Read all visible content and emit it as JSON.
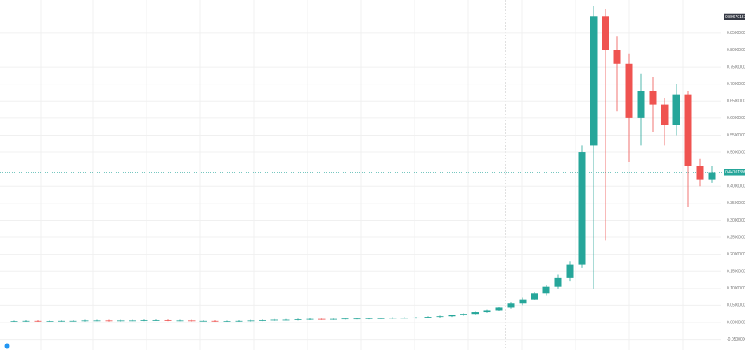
{
  "chart_data": {
    "type": "candlestick",
    "series": {
      "open": [
        0.004,
        0.004,
        0.005,
        0.004,
        0.004,
        0.005,
        0.005,
        0.006,
        0.006,
        0.005,
        0.006,
        0.006,
        0.007,
        0.007,
        0.006,
        0.006,
        0.005,
        0.005,
        0.004,
        0.004,
        0.005,
        0.006,
        0.007,
        0.008,
        0.008,
        0.009,
        0.01,
        0.009,
        0.01,
        0.011,
        0.011,
        0.012,
        0.012,
        0.013,
        0.013,
        0.014,
        0.016,
        0.018,
        0.021,
        0.025,
        0.03,
        0.036,
        0.043,
        0.055,
        0.068,
        0.085,
        0.105,
        0.13,
        0.17,
        0.52,
        0.9,
        0.8,
        0.76,
        0.6,
        0.68,
        0.64,
        0.58,
        0.67,
        0.46,
        0.42
      ],
      "high": [
        0.006,
        0.007,
        0.007,
        0.006,
        0.007,
        0.007,
        0.008,
        0.008,
        0.008,
        0.008,
        0.008,
        0.009,
        0.009,
        0.009,
        0.008,
        0.008,
        0.007,
        0.007,
        0.006,
        0.007,
        0.008,
        0.009,
        0.01,
        0.01,
        0.011,
        0.012,
        0.012,
        0.012,
        0.013,
        0.013,
        0.014,
        0.014,
        0.015,
        0.015,
        0.016,
        0.018,
        0.02,
        0.023,
        0.027,
        0.032,
        0.038,
        0.045,
        0.06,
        0.073,
        0.09,
        0.11,
        0.14,
        0.18,
        0.52,
        0.93,
        0.92,
        0.84,
        0.79,
        0.73,
        0.72,
        0.66,
        0.7,
        0.68,
        0.48,
        0.46
      ],
      "low": [
        0.002,
        0.002,
        0.002,
        0.002,
        0.002,
        0.003,
        0.003,
        0.004,
        0.003,
        0.003,
        0.004,
        0.004,
        0.005,
        0.004,
        0.004,
        0.003,
        0.003,
        0.002,
        0.002,
        0.002,
        0.003,
        0.004,
        0.005,
        0.006,
        0.006,
        0.007,
        0.007,
        0.007,
        0.008,
        0.009,
        0.009,
        0.01,
        0.01,
        0.011,
        0.011,
        0.012,
        0.014,
        0.016,
        0.019,
        0.023,
        0.028,
        0.034,
        0.04,
        0.05,
        0.065,
        0.08,
        0.1,
        0.12,
        0.16,
        0.1,
        0.24,
        0.62,
        0.47,
        0.52,
        0.56,
        0.52,
        0.55,
        0.34,
        0.4,
        0.41
      ],
      "close": [
        0.004,
        0.005,
        0.004,
        0.004,
        0.005,
        0.005,
        0.006,
        0.006,
        0.005,
        0.006,
        0.006,
        0.007,
        0.007,
        0.006,
        0.006,
        0.005,
        0.005,
        0.004,
        0.004,
        0.005,
        0.006,
        0.007,
        0.008,
        0.008,
        0.009,
        0.01,
        0.009,
        0.01,
        0.011,
        0.011,
        0.012,
        0.012,
        0.013,
        0.013,
        0.014,
        0.016,
        0.018,
        0.021,
        0.025,
        0.03,
        0.036,
        0.043,
        0.055,
        0.068,
        0.085,
        0.105,
        0.13,
        0.17,
        0.5,
        0.9,
        0.8,
        0.76,
        0.6,
        0.68,
        0.64,
        0.58,
        0.67,
        0.46,
        0.42,
        0.44101398
      ]
    },
    "up_color": "#26a69a",
    "down_color": "#ef5350",
    "ylim": [
      -0.081,
      0.947
    ],
    "yticks": [
      {
        "value": -0.05,
        "label": "-0.05000000"
      },
      {
        "value": 0,
        "label": "0.00000000"
      },
      {
        "value": 0.05,
        "label": "0.05000000"
      },
      {
        "value": 0.1,
        "label": "0.10000000"
      },
      {
        "value": 0.15,
        "label": "0.15000000"
      },
      {
        "value": 0.2,
        "label": "0.20000000"
      },
      {
        "value": 0.25,
        "label": "0.25000000"
      },
      {
        "value": 0.3,
        "label": "0.30000000"
      },
      {
        "value": 0.35,
        "label": "0.35000000"
      },
      {
        "value": 0.4,
        "label": "0.40000000"
      },
      {
        "value": 0.5,
        "label": "0.50000000"
      },
      {
        "value": 0.55,
        "label": "0.55000000"
      },
      {
        "value": 0.6,
        "label": "0.60000000"
      },
      {
        "value": 0.65,
        "label": "0.65000000"
      },
      {
        "value": 0.7,
        "label": "0.70000000"
      },
      {
        "value": 0.75,
        "label": "0.75000000"
      },
      {
        "value": 0.8,
        "label": "0.80000000"
      },
      {
        "value": 0.85,
        "label": "0.85000000"
      }
    ],
    "high_marker": 0.89670157,
    "last_price": 0.44101398,
    "grid": true
  }
}
